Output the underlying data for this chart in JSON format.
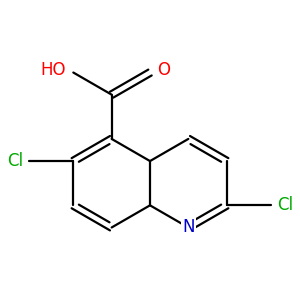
{
  "background_color": "#ffffff",
  "bond_color": "#000000",
  "bond_width": 1.6,
  "atom_colors": {
    "N": "#0000cc",
    "O": "#ff0000",
    "Cl": "#00aa00"
  },
  "font_size": 12,
  "scale": 0.72
}
